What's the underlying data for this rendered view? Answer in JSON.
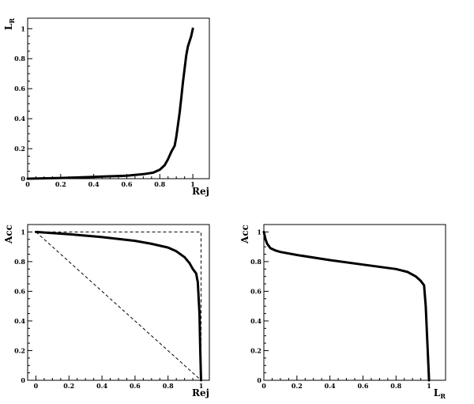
{
  "chart_data": [
    {
      "type": "line",
      "xlabel": "Rej",
      "ylabel": "L_R",
      "xlim": [
        0,
        1.1
      ],
      "ylim": [
        0,
        1.07
      ],
      "xticks": [
        0,
        0.2,
        0.4,
        0.6,
        0.8,
        1
      ],
      "xtick_labels": [
        "0",
        "0.2",
        "0.4",
        "0.6",
        "0.8",
        "1"
      ],
      "yticks": [
        0,
        0.2,
        0.4,
        0.6,
        0.8,
        1
      ],
      "ytick_labels": [
        "0",
        "0.2",
        "0.4",
        "0.6",
        "0.8",
        "1"
      ],
      "grid": false,
      "series": [
        {
          "x": [
            0,
            0.2,
            0.4,
            0.6,
            0.7,
            0.76,
            0.8,
            0.83,
            0.85,
            0.87,
            0.89,
            0.9,
            0.91,
            0.92,
            0.93,
            0.94,
            0.95,
            0.96,
            0.97,
            0.99,
            1.0
          ],
          "y": [
            0,
            0.005,
            0.012,
            0.02,
            0.03,
            0.04,
            0.06,
            0.09,
            0.13,
            0.18,
            0.22,
            0.28,
            0.36,
            0.44,
            0.54,
            0.64,
            0.73,
            0.82,
            0.88,
            0.95,
            1.0
          ]
        }
      ]
    },
    {
      "type": "line",
      "xlabel": "Rej",
      "ylabel": "Acc",
      "xlim": [
        -0.05,
        1.05
      ],
      "ylim": [
        0,
        1.05
      ],
      "xticks": [
        0,
        0.2,
        0.4,
        0.6,
        0.8,
        1
      ],
      "xtick_labels": [
        "0",
        "0.2",
        "0.4",
        "0.6",
        "0.8",
        "1"
      ],
      "yticks": [
        0,
        0.2,
        0.4,
        0.6,
        0.8,
        1
      ],
      "ytick_labels": [
        "0",
        "0.2",
        "0.4",
        "0.6",
        "0.8",
        "1"
      ],
      "grid": false,
      "series": [
        {
          "x": [
            0,
            0.2,
            0.4,
            0.6,
            0.7,
            0.8,
            0.85,
            0.9,
            0.93,
            0.95,
            0.97,
            0.98,
            0.99,
            0.995,
            1.0
          ],
          "y": [
            1,
            0.985,
            0.965,
            0.94,
            0.92,
            0.895,
            0.87,
            0.83,
            0.79,
            0.75,
            0.72,
            0.66,
            0.45,
            0.2,
            0
          ]
        },
        {
          "x": [
            0,
            1
          ],
          "y": [
            1,
            0
          ],
          "style": "dashed"
        },
        {
          "x": [
            0,
            1,
            1
          ],
          "y": [
            1,
            1,
            0
          ],
          "style": "dashed"
        }
      ]
    },
    {
      "type": "line",
      "xlabel": "L_R",
      "ylabel": "Acc",
      "xlim": [
        0,
        1.1
      ],
      "ylim": [
        0,
        1.05
      ],
      "xticks": [
        0,
        0.2,
        0.4,
        0.6,
        0.8,
        1
      ],
      "xtick_labels": [
        "0",
        "0.2",
        "0.4",
        "0.6",
        "0.8",
        "1"
      ],
      "yticks": [
        0,
        0.2,
        0.4,
        0.6,
        0.8,
        1
      ],
      "ytick_labels": [
        "0",
        "0.2",
        "0.4",
        "0.6",
        "0.8",
        "1"
      ],
      "grid": false,
      "series": [
        {
          "x": [
            0,
            0.01,
            0.02,
            0.04,
            0.07,
            0.1,
            0.2,
            0.4,
            0.6,
            0.8,
            0.87,
            0.92,
            0.95,
            0.97,
            0.98,
            1.0
          ],
          "y": [
            1,
            0.95,
            0.92,
            0.89,
            0.875,
            0.865,
            0.845,
            0.81,
            0.78,
            0.75,
            0.73,
            0.7,
            0.67,
            0.64,
            0.5,
            0
          ]
        }
      ]
    }
  ]
}
